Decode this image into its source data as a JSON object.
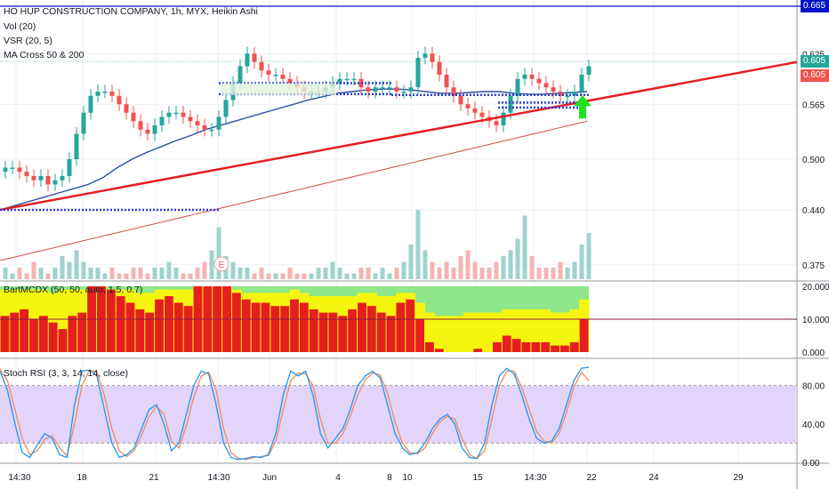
{
  "header": {
    "title": "HO HUP CONSTRUCTION COMPANY, 1h, MYX, Heikin Ashi",
    "studies": [
      "Vol (20)",
      "VSR (20, 5)",
      "MA Cross 50 & 200"
    ]
  },
  "price_tags": {
    "top": "0.665",
    "last": "0.605",
    "prev": "0.605"
  },
  "panes": {
    "mcdx_label": "BartMCDX (50, 50, auto, 1.5, 0.7)",
    "stoch_label": "Stoch RSI (3, 3, 14, 14, close)"
  },
  "axes": {
    "price_ticks": [
      "0.625",
      "0.565",
      "0.500",
      "0.440",
      "0.375"
    ],
    "mcdx_ticks": [
      "20.000",
      "10.000",
      "0.000"
    ],
    "stoch_ticks": [
      "80.00",
      "40.00",
      "0.00"
    ],
    "time_ticks": [
      "14:30",
      "18",
      "21",
      "14:30",
      "Jun",
      "4",
      "8",
      "10",
      "15",
      "14:30",
      "22",
      "24",
      "29"
    ]
  },
  "markers": {
    "earnings": "E"
  },
  "colors": {
    "up": "#26a69a",
    "down": "#ef5350",
    "trend": "#e51f24",
    "ma50": "#2c4fa3",
    "ma200": "#d0463c",
    "stoch_band": "#e3d4fb",
    "mcdx_red": "#e51f1f",
    "mcdx_yellow": "#f5f50f",
    "mcdx_green": "#8ee78a",
    "tag_blue": "#0013c6",
    "tag_green": "#26a69a",
    "tag_red": "#ef5350"
  },
  "chart_data": {
    "type": "candlestick",
    "symbol": "HO HUP CONSTRUCTION COMPANY",
    "interval": "1h",
    "y_range": [
      0.36,
      0.68
    ],
    "last_price": 0.605,
    "close_series": [
      0.49,
      0.49,
      0.485,
      0.48,
      0.475,
      0.48,
      0.47,
      0.475,
      0.48,
      0.5,
      0.53,
      0.555,
      0.575,
      0.58,
      0.58,
      0.575,
      0.565,
      0.555,
      0.545,
      0.535,
      0.53,
      0.54,
      0.55,
      0.555,
      0.555,
      0.55,
      0.545,
      0.54,
      0.535,
      0.535,
      0.55,
      0.57,
      0.59,
      0.61,
      0.625,
      0.615,
      0.605,
      0.6,
      0.6,
      0.595,
      0.59,
      0.585,
      0.58,
      0.58,
      0.58,
      0.585,
      0.59,
      0.595,
      0.595,
      0.595,
      0.585,
      0.58,
      0.585,
      0.585,
      0.585,
      0.58,
      0.58,
      0.585,
      0.62,
      0.625,
      0.615,
      0.6,
      0.585,
      0.575,
      0.565,
      0.56,
      0.555,
      0.55,
      0.545,
      0.54,
      0.555,
      0.575,
      0.595,
      0.6,
      0.595,
      0.59,
      0.585,
      0.58,
      0.575,
      0.575,
      0.58,
      0.6,
      0.61
    ],
    "volume": [
      2,
      1,
      2,
      1,
      3,
      2,
      1,
      2,
      4,
      3,
      5,
      3,
      2,
      2,
      1,
      2,
      1,
      1,
      2,
      2,
      1,
      2,
      2,
      3,
      2,
      1,
      1,
      2,
      3,
      5,
      9,
      4,
      3,
      2,
      2,
      1,
      2,
      1,
      1,
      1,
      2,
      1,
      1,
      1,
      2,
      2,
      3,
      2,
      1,
      1,
      2,
      2,
      1,
      2,
      1,
      2,
      3,
      6,
      12,
      5,
      3,
      2,
      3,
      2,
      4,
      5,
      3,
      2,
      2,
      3,
      4,
      5,
      7,
      11,
      4,
      2,
      2,
      2,
      3,
      2,
      3,
      6,
      8
    ],
    "ma50": [
      0.44,
      0.445,
      0.45,
      0.455,
      0.46,
      0.465,
      0.47,
      0.478,
      0.49,
      0.5,
      0.508,
      0.515,
      0.522,
      0.528,
      0.535,
      0.54,
      0.545,
      0.55,
      0.555,
      0.56,
      0.565,
      0.57,
      0.574,
      0.578,
      0.58,
      0.582,
      0.583,
      0.583,
      0.582,
      0.58,
      0.578,
      0.578,
      0.579,
      0.58,
      0.58,
      0.578,
      0.577,
      0.577,
      0.578,
      0.579,
      0.58
    ],
    "ma200": [
      0.38,
      0.385,
      0.39,
      0.395,
      0.4,
      0.405,
      0.41,
      0.415,
      0.42,
      0.425,
      0.43,
      0.435,
      0.44,
      0.445,
      0.45,
      0.455,
      0.46,
      0.465,
      0.47,
      0.475,
      0.48,
      0.485,
      0.49,
      0.495,
      0.5,
      0.505,
      0.51,
      0.515,
      0.52,
      0.525,
      0.53,
      0.535,
      0.54,
      0.545
    ],
    "trendline": {
      "start": 0.44,
      "end": 0.615
    },
    "mcdx": {
      "range": [
        0,
        20
      ],
      "red": [
        11,
        12,
        13,
        10,
        11,
        9,
        7,
        11,
        12,
        20,
        20,
        19,
        17,
        15,
        13,
        12,
        16,
        17,
        15,
        14,
        20,
        20,
        20,
        20,
        18,
        16,
        15,
        15,
        14,
        14,
        16,
        15,
        13,
        12,
        12,
        11,
        13,
        15,
        14,
        12,
        11,
        15,
        16,
        10,
        3,
        1,
        0,
        0,
        0,
        1,
        0,
        3,
        5,
        4,
        3,
        3,
        3,
        2,
        2,
        3,
        10
      ],
      "yellow": [
        19,
        19,
        19,
        19,
        19,
        18,
        19,
        19,
        19,
        20,
        20,
        19,
        19,
        19,
        18,
        18,
        19,
        19,
        19,
        19,
        20,
        20,
        20,
        20,
        19,
        18,
        18,
        18,
        18,
        18,
        19,
        18,
        17,
        17,
        17,
        17,
        17,
        18,
        18,
        17,
        17,
        18,
        18,
        15,
        12,
        11,
        11,
        11,
        12,
        12,
        12,
        12,
        13,
        13,
        13,
        13,
        13,
        12,
        12,
        13,
        16
      ]
    },
    "stoch": {
      "range": [
        0,
        100
      ],
      "bands": [
        20,
        80
      ],
      "k": [
        95,
        75,
        40,
        10,
        5,
        18,
        30,
        25,
        8,
        5,
        60,
        95,
        96,
        90,
        55,
        20,
        5,
        8,
        15,
        35,
        55,
        60,
        40,
        12,
        20,
        50,
        80,
        95,
        92,
        60,
        20,
        5,
        3,
        4,
        6,
        5,
        8,
        30,
        70,
        95,
        90,
        95,
        70,
        30,
        15,
        25,
        35,
        55,
        80,
        90,
        95,
        88,
        60,
        30,
        15,
        8,
        10,
        20,
        35,
        45,
        50,
        40,
        15,
        5,
        4,
        20,
        60,
        90,
        98,
        92,
        70,
        45,
        25,
        20,
        22,
        35,
        60,
        85,
        98,
        99
      ],
      "d": [
        97,
        85,
        55,
        25,
        8,
        12,
        24,
        28,
        15,
        7,
        40,
        80,
        96,
        94,
        70,
        35,
        12,
        6,
        12,
        28,
        48,
        58,
        50,
        22,
        15,
        38,
        68,
        90,
        94,
        75,
        35,
        10,
        4,
        3,
        5,
        6,
        7,
        22,
        55,
        85,
        93,
        92,
        80,
        45,
        20,
        20,
        30,
        48,
        70,
        86,
        93,
        91,
        72,
        42,
        20,
        10,
        9,
        15,
        30,
        42,
        48,
        45,
        25,
        8,
        4,
        12,
        45,
        80,
        95,
        95,
        78,
        55,
        32,
        22,
        20,
        30,
        52,
        78,
        94,
        85
      ]
    }
  }
}
